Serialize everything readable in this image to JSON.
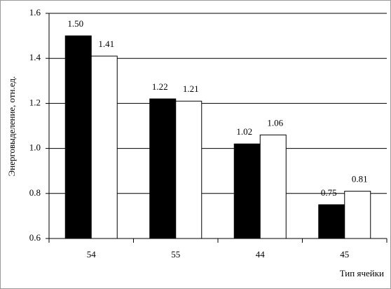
{
  "chart_data": {
    "type": "bar",
    "y_label": "Энерговыделение, отн.ед.",
    "x_label": "Тип ячейки",
    "categories": [
      "54",
      "55",
      "44",
      "45"
    ],
    "series": [
      {
        "color": "#000000",
        "values": [
          1.5,
          1.22,
          1.02,
          0.75
        ],
        "value_labels": [
          "1.50",
          "1.22",
          "1.02",
          "0.75"
        ]
      },
      {
        "color": "#ffffff",
        "values": [
          1.41,
          1.21,
          1.06,
          0.81
        ],
        "value_labels": [
          "1.41",
          "1.21",
          "1.06",
          "0.81"
        ]
      }
    ],
    "ylim": [
      0.6,
      1.6
    ],
    "yticks": [
      0.6,
      0.8,
      {
        "value": 1,
        "label": "1.0"
      },
      1.2,
      1.4,
      1.6
    ],
    "grid": true
  }
}
